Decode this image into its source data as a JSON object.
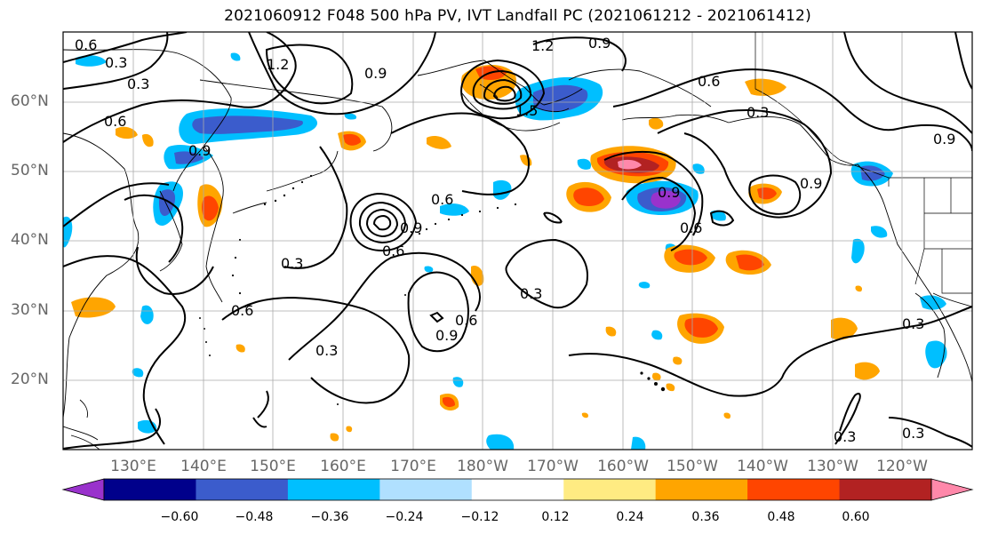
{
  "title": "2021060912 F048 500 hPa PV, IVT Landfall PC (2021061212 - 2021061412)",
  "lat_labels": [
    "60°N",
    "50°N",
    "40°N",
    "30°N",
    "20°N"
  ],
  "lon_labels": [
    "130°E",
    "140°E",
    "150°E",
    "160°E",
    "170°E",
    "180°W",
    "170°W",
    "160°W",
    "150°W",
    "140°W",
    "130°W",
    "120°W"
  ],
  "colorbar": {
    "colors": [
      "#9932cc",
      "#00008b",
      "#3b5ccc",
      "#00bfff",
      "#b0e0ff",
      "#ffffff",
      "#ffeb82",
      "#ffa500",
      "#ff4500",
      "#b22222",
      "#ff88aa"
    ],
    "tick_labels": [
      "−0.60",
      "−0.48",
      "−0.36",
      "−0.24",
      "−0.12",
      "0.12",
      "0.24",
      "0.36",
      "0.48",
      "0.60"
    ]
  },
  "contour_labels": [
    {
      "text": "0.6"
    },
    {
      "text": "0.3"
    },
    {
      "text": "0.3"
    },
    {
      "text": "0.6"
    },
    {
      "text": "1.2"
    },
    {
      "text": "0.9"
    },
    {
      "text": "1.2"
    },
    {
      "text": "0.9"
    },
    {
      "text": "1.5"
    },
    {
      "text": "0.6"
    },
    {
      "text": "0.3"
    },
    {
      "text": "0.9"
    },
    {
      "text": "0.9"
    },
    {
      "text": "0.6"
    },
    {
      "text": "0.9"
    },
    {
      "text": "0.6"
    },
    {
      "text": "0.9"
    },
    {
      "text": "0.3"
    },
    {
      "text": "0.6"
    },
    {
      "text": "0.3"
    },
    {
      "text": "0.3"
    },
    {
      "text": "0.9"
    },
    {
      "text": "0.6"
    },
    {
      "text": "0.3"
    },
    {
      "text": "0.3"
    },
    {
      "text": "0.3"
    },
    {
      "text": "0.9"
    },
    {
      "text": "0.6"
    }
  ]
}
